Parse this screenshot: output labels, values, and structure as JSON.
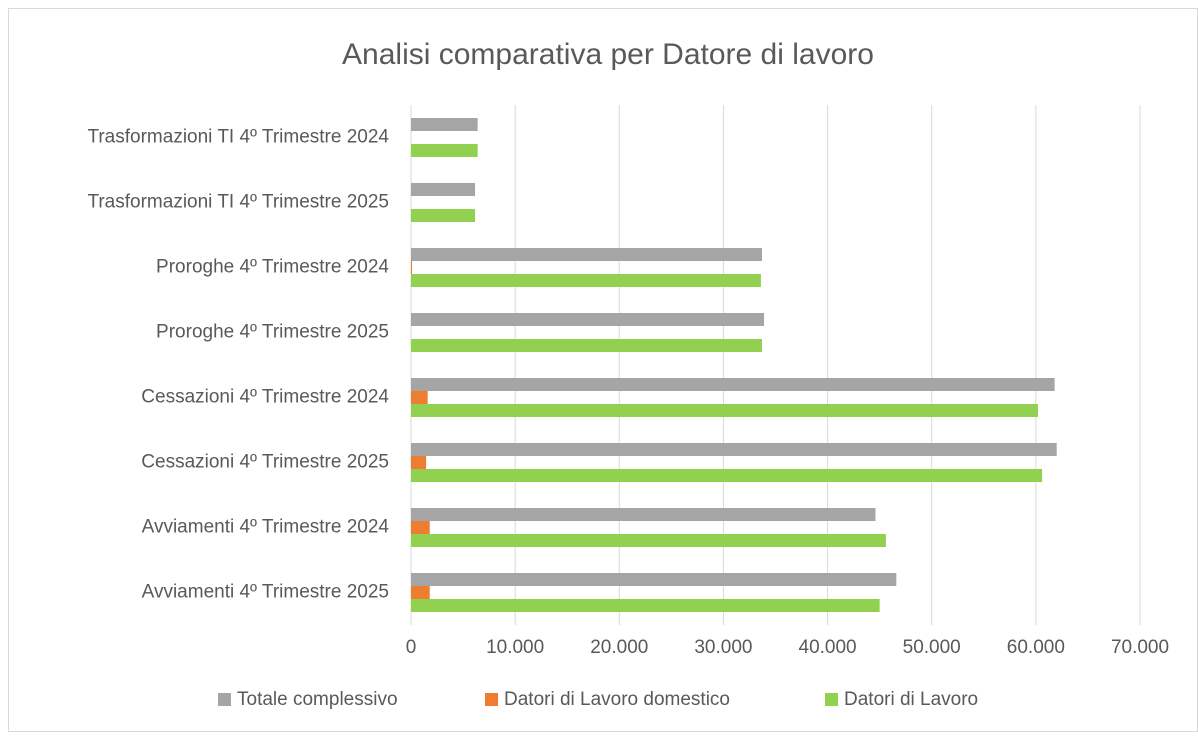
{
  "chart_data": {
    "type": "bar",
    "orientation": "horizontal",
    "title": "Analisi comparativa per Datore di lavoro",
    "categories": [
      "Trasformazioni TI 4º Trimestre 2024",
      "Trasformazioni TI 4º Trimestre 2025",
      "Proroghe 4º Trimestre 2024",
      "Proroghe 4º Trimestre 2025",
      "Cessazioni 4º Trimestre 2024",
      "Cessazioni 4º Trimestre 2025",
      "Avviamenti 4º Trimestre 2024",
      "Avviamenti 4º Trimestre 2025"
    ],
    "series": [
      {
        "name": "Totale complessivo",
        "color": "#a5a5a5",
        "values": [
          6400,
          6150,
          33700,
          33900,
          61800,
          62000,
          44600,
          46600
        ]
      },
      {
        "name": "Datori di Lavoro domestico",
        "color": "#ed7d31",
        "values": [
          0,
          0,
          100,
          0,
          1600,
          1450,
          1800,
          1800
        ]
      },
      {
        "name": "Datori di Lavoro",
        "color": "#92d050",
        "values": [
          6400,
          6150,
          33600,
          33700,
          60200,
          60600,
          45600,
          45000
        ]
      }
    ],
    "xlim": [
      0,
      70000
    ],
    "xticks": [
      0,
      {
        "value": 10000,
        "label": "10.000"
      },
      {
        "value": 20000,
        "label": "20.000"
      },
      {
        "value": 30000,
        "label": "30.000"
      },
      {
        "value": 40000,
        "label": "40.000"
      },
      {
        "value": 50000,
        "label": "50.000"
      },
      {
        "value": 60000,
        "label": "60.000"
      },
      {
        "value": 70000,
        "label": "70.000"
      }
    ],
    "grid": true,
    "legend": "bottom"
  }
}
